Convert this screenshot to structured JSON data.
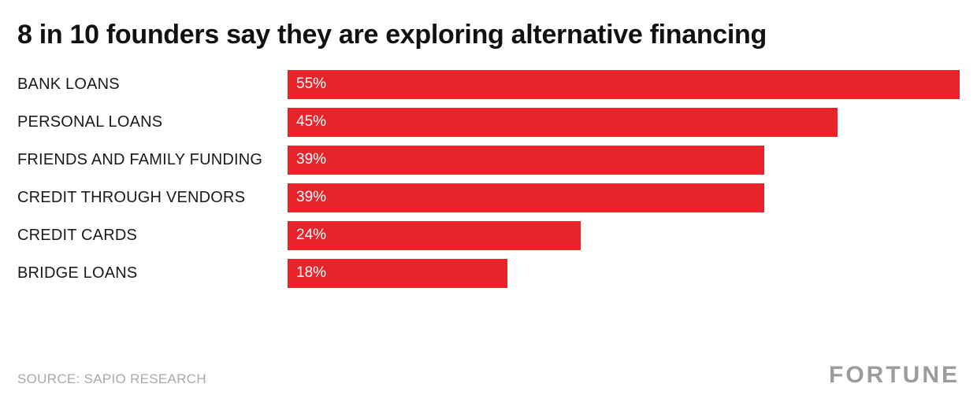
{
  "title": "8 in 10 founders say they are exploring alternative financing",
  "source": "SOURCE: SAPIO RESEARCH",
  "brand": "FORTUNE",
  "colors": {
    "bar": "#e8232a",
    "title_text": "#111111",
    "category_text": "#1a1a1a",
    "value_text": "#ffffff",
    "muted_text": "#a9a9a9",
    "background": "#ffffff"
  },
  "chart_data": {
    "type": "bar",
    "orientation": "horizontal",
    "title": "8 in 10 founders say they are exploring alternative financing",
    "categories": [
      "BANK LOANS",
      "PERSONAL LOANS",
      "FRIENDS AND FAMILY FUNDING",
      "CREDIT THROUGH VENDORS",
      "CREDIT CARDS",
      "BRIDGE LOANS"
    ],
    "values": [
      55,
      45,
      39,
      39,
      24,
      18
    ],
    "value_labels": [
      "55%",
      "45%",
      "39%",
      "39%",
      "24%",
      "18%"
    ],
    "xlabel": "",
    "ylabel": "",
    "xlim": [
      0,
      55
    ],
    "grid": false,
    "legend": false,
    "bar_label_position": "inside-left"
  }
}
